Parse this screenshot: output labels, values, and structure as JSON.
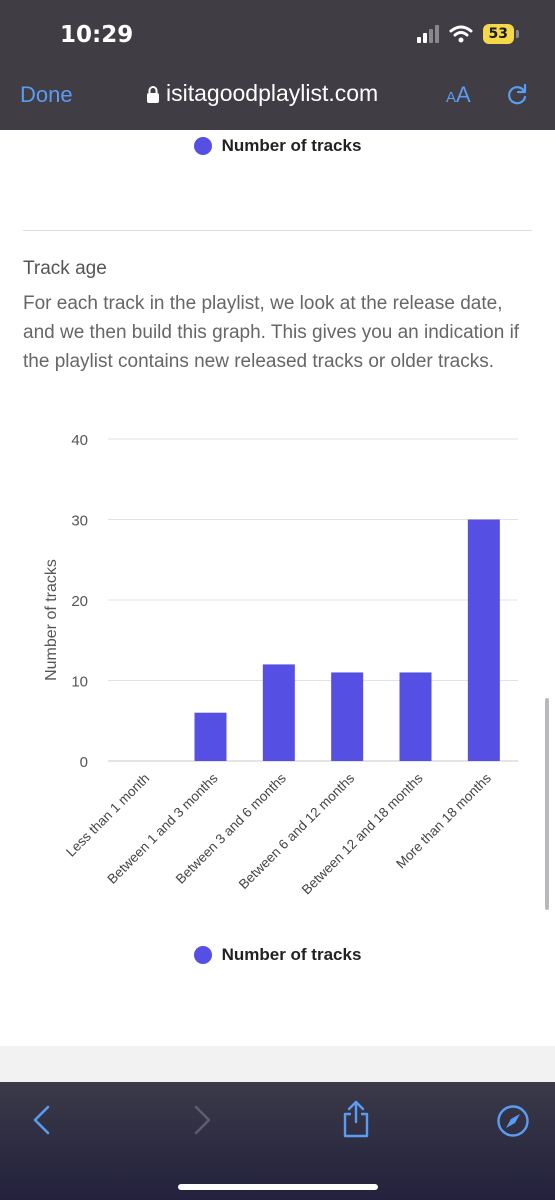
{
  "status_bar": {
    "time": "10:29",
    "battery": "53"
  },
  "browser": {
    "done_label": "Done",
    "url": "isitagoodplaylist.com",
    "text_size_small": "A",
    "text_size_large": "A"
  },
  "legend_top": {
    "label": "Number of tracks"
  },
  "section": {
    "title": "Track age",
    "description": "For each track in the playlist, we look at the release date, and we then build this graph. This gives you an indication if the playlist contains new released tracks or older tracks."
  },
  "chart_data": {
    "type": "bar",
    "categories": [
      "Less than 1 month",
      "Between 1 and 3 months",
      "Between 3 and 6 months",
      "Between 6 and 12 months",
      "Between 12 and 18 months",
      "More than 18 months"
    ],
    "series": [
      {
        "name": "Number of tracks",
        "values": [
          0,
          6,
          12,
          11,
          11,
          30
        ]
      }
    ],
    "ylabel": "Number of tracks",
    "ylim": [
      0,
      40
    ],
    "yticks": [
      0,
      10,
      20,
      30,
      40
    ],
    "grid": true,
    "legend_position": "bottom",
    "color": "#5550e3"
  },
  "legend_bottom": {
    "label": "Number of tracks"
  },
  "colors": {
    "accent": "#5a9cf2",
    "bar": "#5550e3",
    "chrome": "#403d44"
  }
}
